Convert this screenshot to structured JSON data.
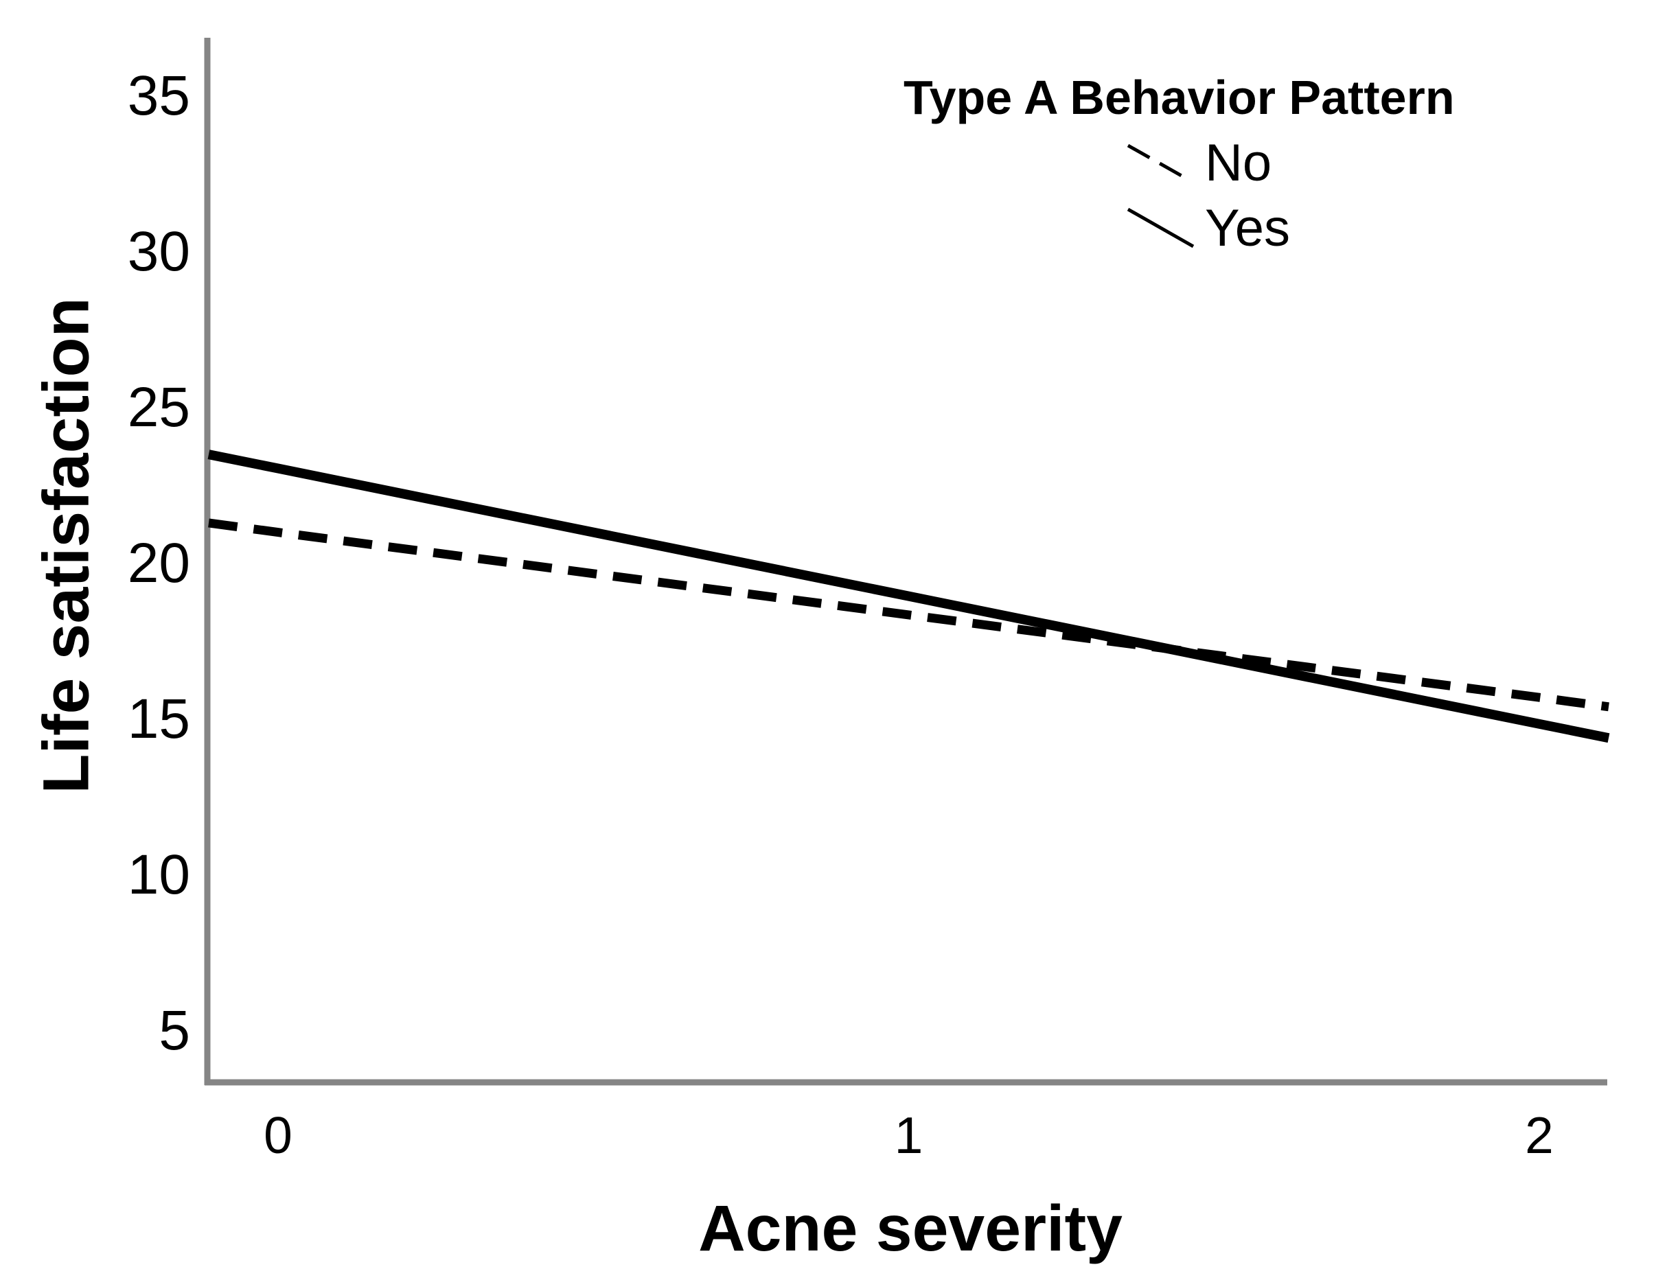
{
  "chart_data": {
    "type": "line",
    "title": "",
    "xlabel": "Acne severity",
    "ylabel": "Life satisfaction",
    "x_ticks": [
      0,
      1,
      2
    ],
    "y_ticks": [
      5,
      10,
      15,
      20,
      25,
      30,
      35
    ],
    "xlim": [
      -0.11,
      2.11
    ],
    "ylim": [
      3.4,
      36.9
    ],
    "grid": false,
    "legend": {
      "title": "Type A Behavior Pattern",
      "position": "top-right-inside",
      "entries": [
        {
          "label": "No",
          "style": "dashed"
        },
        {
          "label": "Yes",
          "style": "solid"
        }
      ]
    },
    "series": [
      {
        "name": "No",
        "style": "dashed",
        "x": [
          -0.11,
          0,
          1,
          2,
          2.11
        ],
        "y": [
          21.3,
          21.0,
          18.35,
          15.7,
          15.4
        ]
      },
      {
        "name": "Yes",
        "style": "solid",
        "x": [
          -0.11,
          0,
          1,
          2,
          2.11
        ],
        "y": [
          23.5,
          23.05,
          18.95,
          14.85,
          14.4
        ]
      }
    ],
    "colors": {
      "line": "#000000",
      "axis": "#858585",
      "text": "#000000",
      "background": "#ffffff"
    }
  }
}
